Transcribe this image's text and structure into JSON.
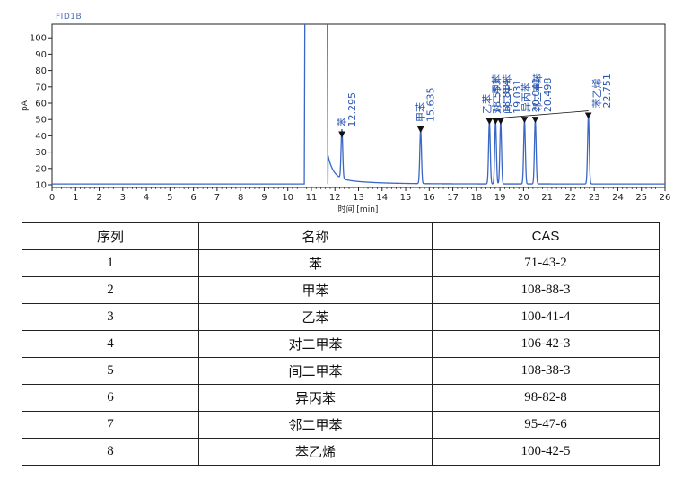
{
  "colors": {
    "trace": "#3a66c6",
    "label": "#2b56b0",
    "axis": "#222222",
    "detector": "#4a6fb5"
  },
  "chart_data": {
    "type": "line",
    "detector_label": "FID1B",
    "ylabel": "pA",
    "xlabel": "时间 [min]",
    "xlim": [
      0,
      26
    ],
    "ylim": [
      10,
      110
    ],
    "x_ticks": [
      0,
      1,
      2,
      3,
      4,
      5,
      6,
      7,
      8,
      9,
      10,
      11,
      12,
      13,
      14,
      15,
      16,
      17,
      18,
      19,
      20,
      21,
      22,
      23,
      24,
      25,
      26
    ],
    "y_ticks": [
      10,
      20,
      30,
      40,
      50,
      60,
      70,
      80,
      90,
      100
    ],
    "baseline": 10.5,
    "solvent_peak": {
      "start": 10.7,
      "end": 11.7,
      "offscale": true
    },
    "peaks": [
      {
        "name": "苯",
        "rt": 12.295,
        "height": 40.5
      },
      {
        "name": "甲苯",
        "rt": 15.635,
        "height": 43.5
      },
      {
        "name": "乙苯",
        "rt": 18.553,
        "height": 48.5
      },
      {
        "name": "对二甲苯",
        "rt": 18.814,
        "height": 48.5
      },
      {
        "name": "间二甲苯",
        "rt": 19.031,
        "height": 48.5
      },
      {
        "name": "异丙苯",
        "rt": 20.041,
        "height": 49.5
      },
      {
        "name": "邻二甲苯",
        "rt": 20.498,
        "height": 49.5
      },
      {
        "name": "苯乙烯",
        "rt": 22.751,
        "height": 52
      }
    ],
    "peak_time_labels": [
      "12.295",
      "15.635",
      "18.553",
      "18.814",
      "19.031",
      "20.041",
      "20.498",
      "22.751"
    ],
    "peak_name_labels": [
      "苯",
      "甲苯",
      "乙苯",
      "对二甲苯",
      "间二甲苯",
      "异丙苯",
      "邻二甲苯",
      "苯乙烯"
    ]
  },
  "table": {
    "headers": [
      "序列",
      "名称",
      "CAS"
    ],
    "rows": [
      [
        "1",
        "苯",
        "71-43-2"
      ],
      [
        "2",
        "甲苯",
        "108-88-3"
      ],
      [
        "3",
        "乙苯",
        "100-41-4"
      ],
      [
        "4",
        "对二甲苯",
        "106-42-3"
      ],
      [
        "5",
        "间二甲苯",
        "108-38-3"
      ],
      [
        "6",
        "异丙苯",
        "98-82-8"
      ],
      [
        "7",
        "邻二甲苯",
        "95-47-6"
      ],
      [
        "8",
        "苯乙烯",
        "100-42-5"
      ]
    ]
  }
}
